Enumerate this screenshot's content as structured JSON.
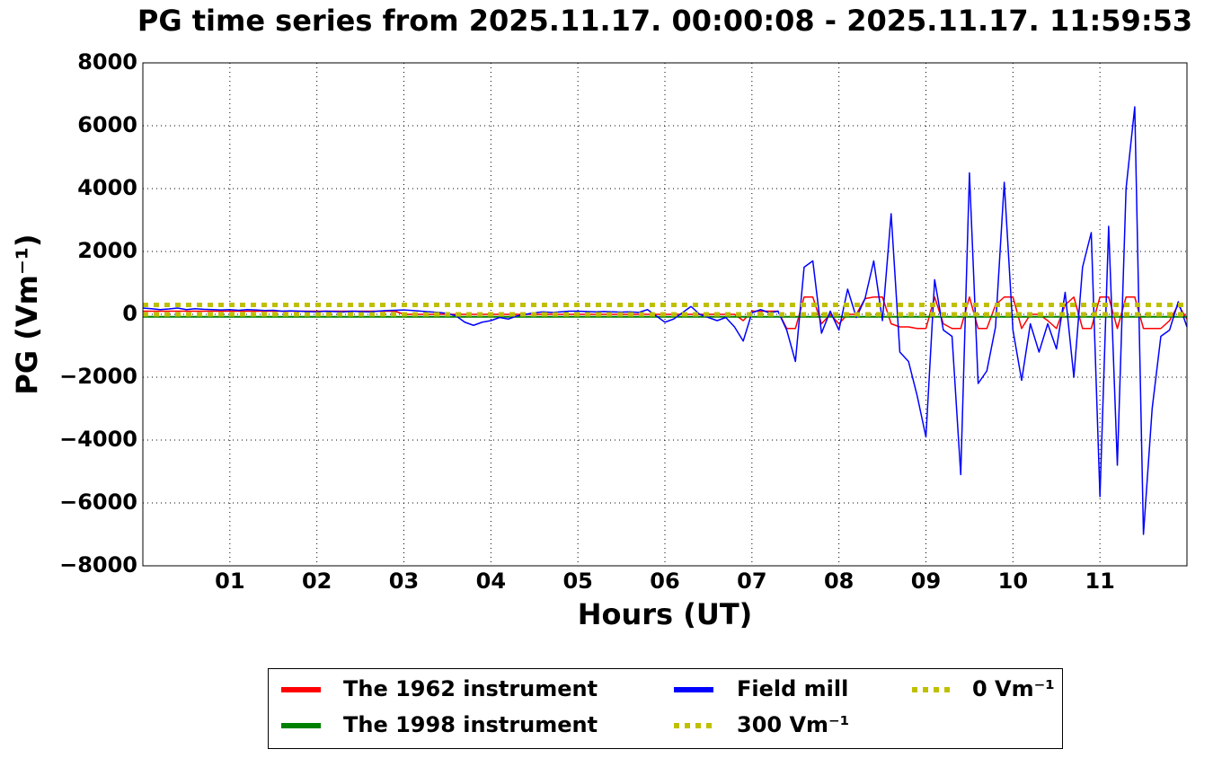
{
  "chart_data": {
    "type": "line",
    "title": "PG time series from 2025.11.17. 00:00:08 - 2025.11.17. 11:59:53",
    "x_label": "Hours (UT)",
    "y_label": "PG (Vm⁻¹)",
    "xlim": [
      0,
      12
    ],
    "ylim": [
      -8000,
      8000
    ],
    "xticks": [
      {
        "value": 1,
        "label": "01"
      },
      {
        "value": 2,
        "label": "02"
      },
      {
        "value": 3,
        "label": "03"
      },
      {
        "value": 4,
        "label": "04"
      },
      {
        "value": 5,
        "label": "05"
      },
      {
        "value": 6,
        "label": "06"
      },
      {
        "value": 7,
        "label": "07"
      },
      {
        "value": 8,
        "label": "08"
      },
      {
        "value": 9,
        "label": "09"
      },
      {
        "value": 10,
        "label": "10"
      },
      {
        "value": 11,
        "label": "11"
      }
    ],
    "yticks": [
      {
        "value": -8000,
        "label": "−8000"
      },
      {
        "value": -6000,
        "label": "−6000"
      },
      {
        "value": -4000,
        "label": "−4000"
      },
      {
        "value": -2000,
        "label": "−2000"
      },
      0,
      2000,
      4000,
      6000,
      8000
    ],
    "grid": true,
    "legend": "below",
    "series": [
      {
        "name": "The 1962 instrument",
        "color": "#ff0000",
        "linestyle": "solid",
        "x": [
          0,
          0.1,
          0.2,
          0.3,
          0.4,
          0.5,
          0.6,
          0.7,
          0.8,
          0.9,
          1,
          1.1,
          1.2,
          1.3,
          1.4,
          1.5,
          1.6,
          1.7,
          1.8,
          1.9,
          2,
          2.1,
          2.2,
          2.3,
          2.4,
          2.5,
          2.6,
          2.7,
          2.8,
          2.9,
          3,
          3.1,
          3.2,
          3.3,
          3.4,
          3.5,
          3.6,
          3.7,
          3.8,
          3.9,
          4,
          4.1,
          4.2,
          4.3,
          4.4,
          4.5,
          4.6,
          4.7,
          4.8,
          4.9,
          5,
          5.1,
          5.2,
          5.3,
          5.4,
          5.5,
          5.6,
          5.7,
          5.8,
          5.9,
          6,
          6.1,
          6.2,
          6.3,
          6.4,
          6.5,
          6.6,
          6.7,
          6.8,
          6.9,
          7,
          7.1,
          7.2,
          7.3,
          7.4,
          7.5,
          7.6,
          7.7,
          7.8,
          7.9,
          8,
          8.1,
          8.2,
          8.3,
          8.4,
          8.5,
          8.6,
          8.7,
          8.8,
          8.9,
          9,
          9.1,
          9.2,
          9.3,
          9.4,
          9.5,
          9.6,
          9.7,
          9.8,
          9.9,
          10,
          10.1,
          10.2,
          10.3,
          10.4,
          10.5,
          10.6,
          10.7,
          10.8,
          10.9,
          11,
          11.1,
          11.2,
          11.3,
          11.4,
          11.5,
          11.6,
          11.7,
          11.8,
          11.9,
          12
        ],
        "values": [
          100,
          100,
          100,
          100,
          100,
          100,
          100,
          100,
          100,
          100,
          100,
          100,
          100,
          100,
          100,
          100,
          100,
          100,
          100,
          100,
          100,
          100,
          100,
          100,
          100,
          100,
          100,
          100,
          100,
          100,
          0,
          0,
          0,
          0,
          0,
          0,
          0,
          0,
          0,
          0,
          0,
          0,
          0,
          0,
          0,
          0,
          0,
          0,
          0,
          0,
          0,
          0,
          0,
          0,
          0,
          0,
          0,
          0,
          0,
          0,
          0,
          0,
          0,
          0,
          0,
          0,
          0,
          0,
          0,
          -200,
          100,
          100,
          100,
          100,
          -450,
          -450,
          550,
          550,
          -300,
          0,
          -300,
          0,
          0,
          500,
          550,
          550,
          -300,
          -400,
          -400,
          -450,
          -450,
          550,
          -300,
          -450,
          -450,
          550,
          -450,
          -450,
          300,
          550,
          550,
          -450,
          0,
          0,
          -200,
          -450,
          300,
          550,
          -450,
          -450,
          550,
          550,
          -450,
          550,
          550,
          -450,
          -450,
          -450,
          -200,
          300,
          -150
        ]
      },
      {
        "name": "The 1998 instrument",
        "color": "#008000",
        "linestyle": "solid",
        "x": [
          0,
          12
        ],
        "values": [
          -80,
          -80
        ]
      },
      {
        "name": "Field mill",
        "color": "#0000ff",
        "linestyle": "solid",
        "x": [
          0,
          0.1,
          0.2,
          0.3,
          0.4,
          0.5,
          0.6,
          0.7,
          0.8,
          0.9,
          1,
          1.1,
          1.2,
          1.3,
          1.4,
          1.5,
          1.6,
          1.7,
          1.8,
          1.9,
          2,
          2.1,
          2.2,
          2.3,
          2.4,
          2.5,
          2.6,
          2.7,
          2.8,
          2.9,
          3,
          3.1,
          3.2,
          3.3,
          3.4,
          3.5,
          3.6,
          3.7,
          3.8,
          3.9,
          4,
          4.1,
          4.2,
          4.3,
          4.4,
          4.5,
          4.6,
          4.7,
          4.8,
          4.9,
          5,
          5.1,
          5.2,
          5.3,
          5.4,
          5.5,
          5.6,
          5.7,
          5.8,
          5.9,
          6,
          6.1,
          6.2,
          6.3,
          6.4,
          6.5,
          6.6,
          6.7,
          6.8,
          6.9,
          7,
          7.1,
          7.2,
          7.3,
          7.4,
          7.5,
          7.6,
          7.7,
          7.8,
          7.9,
          8,
          8.1,
          8.2,
          8.3,
          8.4,
          8.5,
          8.6,
          8.7,
          8.8,
          8.9,
          9,
          9.1,
          9.2,
          9.3,
          9.4,
          9.5,
          9.6,
          9.7,
          9.8,
          9.9,
          10,
          10.1,
          10.2,
          10.3,
          10.4,
          10.5,
          10.6,
          10.7,
          10.8,
          10.9,
          11,
          11.1,
          11.2,
          11.3,
          11.4,
          11.5,
          11.6,
          11.7,
          11.8,
          11.9,
          12
        ],
        "values": [
          200,
          180,
          150,
          170,
          200,
          150,
          180,
          160,
          150,
          140,
          150,
          130,
          150,
          140,
          120,
          130,
          100,
          110,
          100,
          90,
          80,
          100,
          90,
          80,
          100,
          90,
          80,
          100,
          120,
          130,
          140,
          120,
          100,
          80,
          60,
          30,
          -50,
          -250,
          -350,
          -250,
          -200,
          -100,
          -150,
          -50,
          0,
          50,
          80,
          60,
          80,
          100,
          100,
          90,
          80,
          90,
          80,
          70,
          80,
          60,
          150,
          -50,
          -250,
          -150,
          50,
          250,
          0,
          -100,
          -200,
          -100,
          -400,
          -850,
          50,
          150,
          50,
          100,
          -500,
          -1500,
          1500,
          1700,
          -600,
          100,
          -500,
          800,
          -100,
          500,
          1700,
          -200,
          3200,
          -1200,
          -1500,
          -2600,
          -3900,
          1100,
          -500,
          -700,
          -5100,
          4500,
          -2200,
          -1800,
          -400,
          4200,
          -500,
          -2100,
          -300,
          -1200,
          -300,
          -1100,
          700,
          -2000,
          1500,
          2600,
          -5800,
          2800,
          -4800,
          4000,
          6600,
          -7000,
          -3000,
          -700,
          -500,
          400,
          -400
        ]
      },
      {
        "name": "300 Vm⁻¹",
        "color": "#bfbf00",
        "linestyle": "dotted",
        "x": [
          0,
          12
        ],
        "values": [
          300,
          300
        ]
      },
      {
        "name": "0 Vm⁻¹",
        "color": "#bfbf00",
        "linestyle": "dotted",
        "x": [
          0,
          12
        ],
        "values": [
          0,
          0
        ]
      }
    ]
  }
}
